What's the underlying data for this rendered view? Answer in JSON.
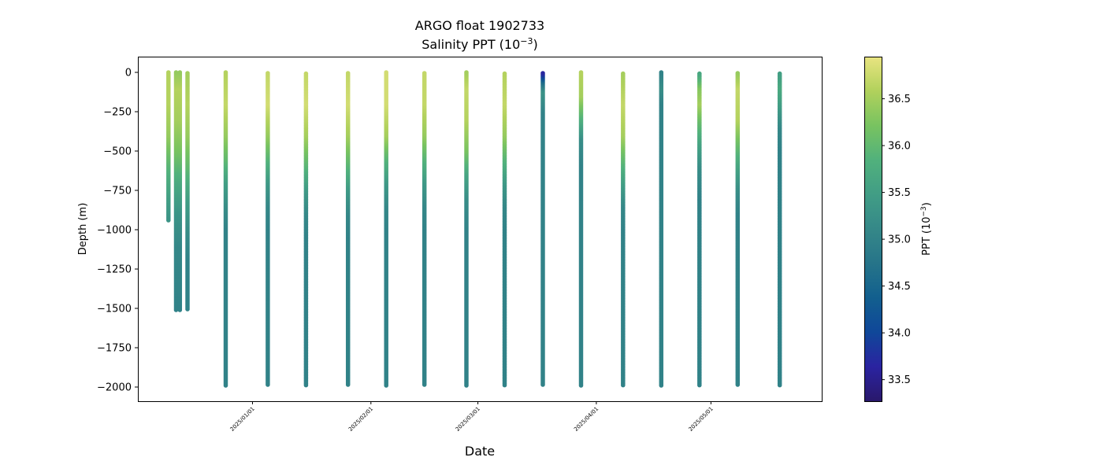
{
  "chart_data": {
    "type": "scatter",
    "title": "ARGO float 1902733",
    "subtitle": "Salinity PPT (10",
    "subtitle_sup": "−3",
    "subtitle_close": ")",
    "xlabel": "Date",
    "ylabel": "Depth (m)",
    "colorbar_label": "PPT (10",
    "colorbar_label_sup": "−3",
    "colorbar_label_close": ")",
    "colormap": "haline",
    "colorbar_range": [
      33.27,
      36.95
    ],
    "colorbar_ticks": [
      {
        "value": 33.5,
        "label": "33.5"
      },
      {
        "value": 34.0,
        "label": "34.0"
      },
      {
        "value": 34.5,
        "label": "34.5"
      },
      {
        "value": 35.0,
        "label": "35.0"
      },
      {
        "value": 35.5,
        "label": "35.5"
      },
      {
        "value": 36.0,
        "label": "36.0"
      },
      {
        "value": 36.5,
        "label": "36.5"
      }
    ],
    "xlim": [
      "2024-12-02",
      "2025-05-30"
    ],
    "ylim": [
      -2090,
      100
    ],
    "x_ticks": [
      {
        "date": "2025-01-01",
        "label": "2025/01/01"
      },
      {
        "date": "2025-02-01",
        "label": "2025/02/01"
      },
      {
        "date": "2025-03-01",
        "label": "2025/03/01"
      },
      {
        "date": "2025-04-01",
        "label": "2025/04/01"
      },
      {
        "date": "2025-05-01",
        "label": "2025/05/01"
      }
    ],
    "y_ticks": [
      {
        "value": 0,
        "label": "0"
      },
      {
        "value": -250,
        "label": "−250"
      },
      {
        "value": -500,
        "label": "−500"
      },
      {
        "value": -750,
        "label": "−750"
      },
      {
        "value": -1000,
        "label": "−1000"
      },
      {
        "value": -1250,
        "label": "−1250"
      },
      {
        "value": -1500,
        "label": "−1500"
      },
      {
        "value": -1750,
        "label": "−1750"
      },
      {
        "value": -2000,
        "label": "−2000"
      }
    ],
    "grid": false,
    "profiles": [
      {
        "date": "2024-12-10",
        "max_depth": -940,
        "salinity": [
          [
            0,
            36.6
          ],
          [
            -200,
            36.6
          ],
          [
            -400,
            36.4
          ],
          [
            -600,
            35.9
          ],
          [
            -800,
            35.5
          ],
          [
            -940,
            35.3
          ]
        ]
      },
      {
        "date": "2024-12-12",
        "max_depth": -1510,
        "salinity": [
          [
            0,
            36.4
          ],
          [
            -100,
            36.6
          ],
          [
            -300,
            36.5
          ],
          [
            -500,
            36.2
          ],
          [
            -700,
            35.7
          ],
          [
            -900,
            35.3
          ],
          [
            -1100,
            35.1
          ],
          [
            -1510,
            35.0
          ]
        ]
      },
      {
        "date": "2024-12-13",
        "max_depth": -1510,
        "salinity": [
          [
            0,
            36.4
          ],
          [
            -100,
            36.6
          ],
          [
            -300,
            36.5
          ],
          [
            -500,
            36.2
          ],
          [
            -700,
            35.7
          ],
          [
            -900,
            35.3
          ],
          [
            -1100,
            35.1
          ],
          [
            -1510,
            35.0
          ]
        ]
      },
      {
        "date": "2024-12-15",
        "max_depth": -1505,
        "salinity": [
          [
            0,
            36.5
          ],
          [
            -200,
            36.6
          ],
          [
            -400,
            36.4
          ],
          [
            -600,
            36.0
          ],
          [
            -800,
            35.5
          ],
          [
            -1000,
            35.2
          ],
          [
            -1200,
            35.0
          ],
          [
            -1505,
            35.0
          ]
        ]
      },
      {
        "date": "2024-12-25",
        "max_depth": -1990,
        "salinity": [
          [
            0,
            36.6
          ],
          [
            -200,
            36.7
          ],
          [
            -400,
            36.4
          ],
          [
            -550,
            36.0
          ],
          [
            -700,
            35.5
          ],
          [
            -850,
            35.2
          ],
          [
            -1000,
            35.0
          ],
          [
            -1990,
            35.0
          ]
        ]
      },
      {
        "date": "2025-01-05",
        "max_depth": -1985,
        "salinity": [
          [
            0,
            36.7
          ],
          [
            -200,
            36.8
          ],
          [
            -400,
            36.4
          ],
          [
            -550,
            35.9
          ],
          [
            -700,
            35.4
          ],
          [
            -850,
            35.1
          ],
          [
            -1000,
            35.0
          ],
          [
            -1985,
            35.0
          ]
        ]
      },
      {
        "date": "2025-01-15",
        "max_depth": -1988,
        "salinity": [
          [
            0,
            36.7
          ],
          [
            -200,
            36.8
          ],
          [
            -400,
            36.5
          ],
          [
            -600,
            35.9
          ],
          [
            -750,
            35.4
          ],
          [
            -900,
            35.1
          ],
          [
            -1050,
            35.0
          ],
          [
            -1988,
            35.0
          ]
        ]
      },
      {
        "date": "2025-01-26",
        "max_depth": -1985,
        "salinity": [
          [
            0,
            36.7
          ],
          [
            -200,
            36.8
          ],
          [
            -400,
            36.5
          ],
          [
            -600,
            35.9
          ],
          [
            -750,
            35.4
          ],
          [
            -900,
            35.1
          ],
          [
            -1050,
            35.0
          ],
          [
            -1985,
            35.0
          ]
        ]
      },
      {
        "date": "2025-02-05",
        "max_depth": -1990,
        "salinity": [
          [
            0,
            36.8
          ],
          [
            -200,
            36.8
          ],
          [
            -400,
            36.5
          ],
          [
            -550,
            35.9
          ],
          [
            -700,
            35.4
          ],
          [
            -850,
            35.1
          ],
          [
            -1000,
            35.0
          ],
          [
            -1990,
            35.0
          ]
        ]
      },
      {
        "date": "2025-02-15",
        "max_depth": -1985,
        "salinity": [
          [
            0,
            36.7
          ],
          [
            -200,
            36.7
          ],
          [
            -400,
            36.4
          ],
          [
            -550,
            35.9
          ],
          [
            -700,
            35.4
          ],
          [
            -850,
            35.1
          ],
          [
            -1000,
            35.0
          ],
          [
            -1985,
            35.0
          ]
        ]
      },
      {
        "date": "2025-02-26",
        "max_depth": -1990,
        "salinity": [
          [
            0,
            36.5
          ],
          [
            -100,
            36.7
          ],
          [
            -300,
            36.6
          ],
          [
            -500,
            36.2
          ],
          [
            -650,
            35.6
          ],
          [
            -800,
            35.2
          ],
          [
            -1000,
            35.0
          ],
          [
            -1990,
            35.0
          ]
        ]
      },
      {
        "date": "2025-03-08",
        "max_depth": -1988,
        "salinity": [
          [
            0,
            36.6
          ],
          [
            -200,
            36.7
          ],
          [
            -400,
            36.4
          ],
          [
            -550,
            35.9
          ],
          [
            -700,
            35.4
          ],
          [
            -850,
            35.1
          ],
          [
            -1000,
            35.0
          ],
          [
            -1988,
            35.0
          ]
        ]
      },
      {
        "date": "2025-03-18",
        "max_depth": -1985,
        "salinity": [
          [
            0,
            33.6
          ],
          [
            -30,
            34.0
          ],
          [
            -60,
            34.6
          ],
          [
            -120,
            35.3
          ],
          [
            -250,
            35.0
          ],
          [
            -1985,
            35.0
          ]
        ]
      },
      {
        "date": "2025-03-28",
        "max_depth": -1990,
        "salinity": [
          [
            0,
            36.6
          ],
          [
            -150,
            36.5
          ],
          [
            -300,
            35.8
          ],
          [
            -420,
            35.2
          ],
          [
            -600,
            35.0
          ],
          [
            -1990,
            35.0
          ]
        ]
      },
      {
        "date": "2025-04-08",
        "max_depth": -1988,
        "salinity": [
          [
            0,
            36.5
          ],
          [
            -200,
            36.7
          ],
          [
            -400,
            36.5
          ],
          [
            -550,
            36.0
          ],
          [
            -700,
            35.5
          ],
          [
            -850,
            35.1
          ],
          [
            -1000,
            35.0
          ],
          [
            -1988,
            35.0
          ]
        ]
      },
      {
        "date": "2025-04-18",
        "max_depth": -1990,
        "salinity": [
          [
            0,
            35.0
          ],
          [
            -100,
            35.2
          ],
          [
            -200,
            35.0
          ],
          [
            -1990,
            35.0
          ]
        ]
      },
      {
        "date": "2025-04-28",
        "max_depth": -1988,
        "salinity": [
          [
            0,
            35.6
          ],
          [
            -100,
            36.3
          ],
          [
            -200,
            36.5
          ],
          [
            -300,
            36.1
          ],
          [
            -450,
            35.6
          ],
          [
            -600,
            35.2
          ],
          [
            -800,
            35.0
          ],
          [
            -1988,
            35.0
          ]
        ]
      },
      {
        "date": "2025-05-08",
        "max_depth": -1985,
        "salinity": [
          [
            0,
            36.4
          ],
          [
            -100,
            36.7
          ],
          [
            -300,
            36.6
          ],
          [
            -450,
            36.1
          ],
          [
            -600,
            35.6
          ],
          [
            -750,
            35.2
          ],
          [
            -900,
            35.0
          ],
          [
            -1985,
            35.0
          ]
        ]
      },
      {
        "date": "2025-05-19",
        "max_depth": -1988,
        "salinity": [
          [
            0,
            35.5
          ],
          [
            -100,
            35.7
          ],
          [
            -200,
            35.5
          ],
          [
            -350,
            35.1
          ],
          [
            -500,
            35.0
          ],
          [
            -1988,
            35.0
          ]
        ]
      }
    ]
  }
}
